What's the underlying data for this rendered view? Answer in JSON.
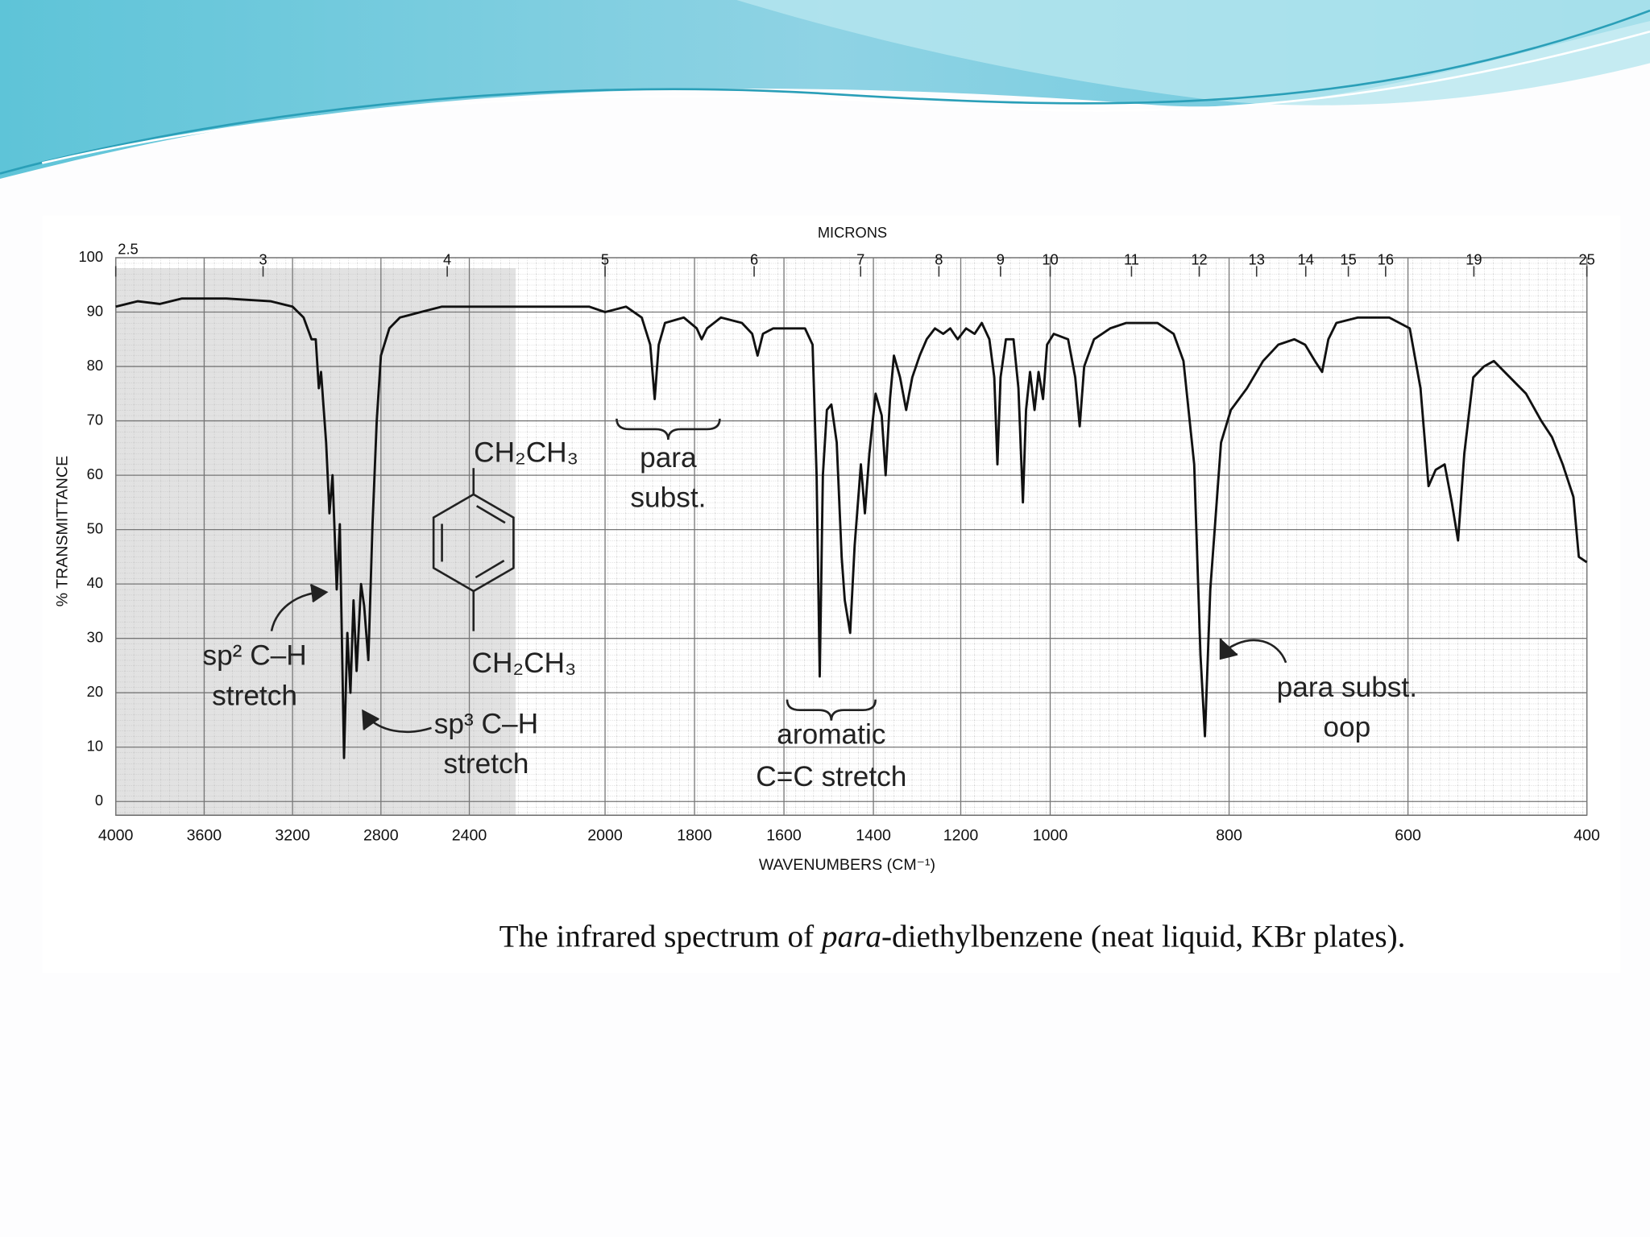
{
  "chart_data": {
    "type": "line",
    "caption": [
      "The infrared spectrum of ",
      "para",
      "-diethylbenzene (neat liquid, KBr plates)."
    ],
    "x_label": "WAVENUMBERS (CM⁻¹)",
    "y_label": "% TRANSMITTANCE",
    "x2_label": "MICRONS",
    "xlim": [
      4000,
      400
    ],
    "ylim": [
      0,
      100
    ],
    "xticks": [
      4000,
      3600,
      3200,
      2800,
      2400,
      2000,
      1800,
      1600,
      1400,
      1200,
      1000,
      800,
      600,
      400
    ],
    "yticks": [
      0,
      10,
      20,
      30,
      40,
      50,
      60,
      70,
      80,
      90,
      100
    ],
    "x2ticks": [
      2.5,
      3,
      4,
      5,
      6,
      7,
      8,
      9,
      10,
      11,
      12,
      13,
      14,
      15,
      16,
      19,
      25
    ],
    "grid": true,
    "annotations": [
      {
        "lines": [
          "CH₂CH₃"
        ]
      },
      {
        "lines": [
          "CH₂CH₃"
        ]
      },
      {
        "lines": [
          "para",
          "subst."
        ]
      },
      {
        "lines": [
          "sp² C–H",
          "stretch"
        ]
      },
      {
        "lines": [
          "sp³ C–H",
          "stretch"
        ]
      },
      {
        "lines": [
          "aromatic",
          "C=C stretch"
        ]
      },
      {
        "lines": [
          "para subst.",
          "oop"
        ]
      }
    ],
    "series": [
      {
        "name": "para-diethylbenzene",
        "color": "#111111",
        "x": [
          4000,
          3900,
          3800,
          3700,
          3500,
          3300,
          3200,
          3150,
          3114,
          3095,
          3081,
          3071,
          3048,
          3033,
          3019,
          3000,
          2986,
          2967,
          2952,
          2938,
          2924,
          2910,
          2890,
          2876,
          2857,
          2838,
          2819,
          2800,
          2762,
          2714,
          2620,
          2524,
          2388,
          2295,
          2171,
          2047,
          2000,
          1953,
          1918,
          1899,
          1889,
          1880,
          1866,
          1824,
          1795,
          1784,
          1772,
          1741,
          1694,
          1671,
          1659,
          1647,
          1624,
          1588,
          1553,
          1536,
          1527,
          1520,
          1513,
          1504,
          1494,
          1482,
          1471,
          1464,
          1456,
          1452,
          1442,
          1428,
          1419,
          1409,
          1395,
          1381,
          1372,
          1362,
          1353,
          1339,
          1325,
          1311,
          1294,
          1278,
          1259,
          1240,
          1224,
          1207,
          1188,
          1169,
          1153,
          1136,
          1125,
          1118,
          1111,
          1099,
          1082,
          1071,
          1061,
          1054,
          1045,
          1035,
          1026,
          1016,
          1007,
          996,
          980,
          972,
          967,
          962,
          951,
          933,
          915,
          898,
          880,
          862,
          851,
          839,
          832,
          827,
          821,
          809,
          798,
          780,
          762,
          745,
          727,
          715,
          704,
          696,
          689,
          680,
          656,
          621,
          598,
          586,
          577,
          569,
          559,
          551,
          544,
          537,
          527,
          515,
          504,
          486,
          468,
          451,
          439,
          427,
          415,
          409,
          400
        ],
        "values": [
          91,
          92,
          91.5,
          92.5,
          92.5,
          92,
          91,
          89,
          85,
          85,
          76,
          79,
          66,
          53,
          60,
          39,
          51,
          8,
          31,
          20,
          37,
          24,
          40,
          36,
          26,
          51,
          70,
          82,
          87,
          89,
          90,
          91,
          91,
          91,
          91,
          91,
          90,
          91,
          89,
          84,
          74,
          84,
          88,
          89,
          87,
          85,
          87,
          89,
          88,
          86,
          82,
          86,
          87,
          87,
          87,
          84,
          60,
          23,
          60,
          72,
          73,
          66,
          45,
          37,
          33,
          31,
          47,
          62,
          53,
          64,
          75,
          71,
          60,
          74,
          82,
          78,
          72,
          78,
          82,
          85,
          87,
          86,
          87,
          85,
          87,
          86,
          88,
          85,
          78,
          62,
          78,
          85,
          85,
          76,
          55,
          72,
          79,
          72,
          79,
          74,
          84,
          86,
          85,
          78,
          69,
          80,
          85,
          87,
          88,
          88,
          88,
          86,
          81,
          62,
          27,
          12,
          39,
          66,
          72,
          76,
          81,
          84,
          85,
          84,
          81,
          79,
          85,
          88,
          89,
          89,
          87,
          76,
          58,
          61,
          62,
          55,
          48,
          64,
          78,
          80,
          81,
          78,
          75,
          70,
          67,
          62,
          56,
          45,
          44
        ]
      }
    ]
  }
}
